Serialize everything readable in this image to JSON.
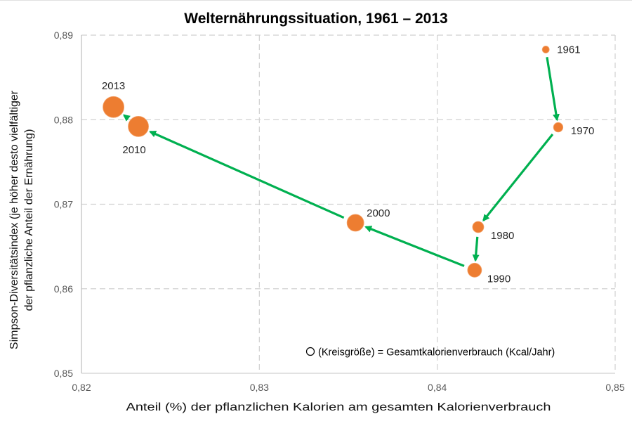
{
  "chart_data": {
    "type": "scatter",
    "subtype": "bubble-path",
    "title": "Welternährungssituation, 1961 – 2013",
    "xlabel": "Anteil (%) der pflanzlichen Kalorien am gesamten Kalorienverbrauch",
    "ylabel_line1": "Simpson-Diversitätsindex (je höher desto vielfältiger",
    "ylabel_line2": "der pflanzliche Anteil der Ernährung)",
    "xlim": [
      0.82,
      0.85
    ],
    "ylim": [
      0.85,
      0.89
    ],
    "xticks": [
      0.82,
      0.83,
      0.84,
      0.85
    ],
    "yticks": [
      0.85,
      0.86,
      0.87,
      0.88,
      0.89
    ],
    "xtick_labels": [
      "0,82",
      "0,83",
      "0,84",
      "0,85"
    ],
    "ytick_labels": [
      "0,85",
      "0,86",
      "0,87",
      "0,88",
      "0,89"
    ],
    "grid": true,
    "legend_note": "(Kreisgröße) = Gesamtkalorienverbrauch (Kcal/Jahr)",
    "legend_position": "bottom-right",
    "point_color": "#ED7D31",
    "arrow_color": "#00B050",
    "points": [
      {
        "label": "1961",
        "x": 0.8461,
        "y": 0.8883,
        "size": 1.0
      },
      {
        "label": "1970",
        "x": 0.8468,
        "y": 0.8791,
        "size": 1.35
      },
      {
        "label": "1980",
        "x": 0.8423,
        "y": 0.8673,
        "size": 1.6
      },
      {
        "label": "1990",
        "x": 0.8421,
        "y": 0.8622,
        "size": 2.0
      },
      {
        "label": "2000",
        "x": 0.8354,
        "y": 0.8678,
        "size": 2.4
      },
      {
        "label": "2010",
        "x": 0.8232,
        "y": 0.8792,
        "size": 2.9
      },
      {
        "label": "2013",
        "x": 0.8218,
        "y": 0.8815,
        "size": 3.0
      }
    ]
  }
}
